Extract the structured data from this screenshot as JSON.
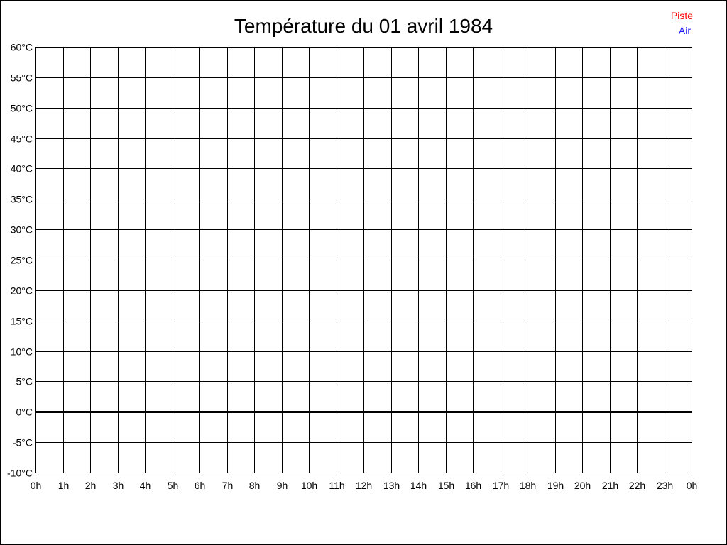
{
  "chart_data": {
    "type": "line",
    "title": "Température du 01 avril 1984",
    "xlabel": "",
    "ylabel": "",
    "x_ticks": [
      "0h",
      "1h",
      "2h",
      "3h",
      "4h",
      "5h",
      "6h",
      "7h",
      "8h",
      "9h",
      "10h",
      "11h",
      "12h",
      "13h",
      "14h",
      "15h",
      "16h",
      "17h",
      "18h",
      "19h",
      "20h",
      "21h",
      "22h",
      "23h",
      "0h"
    ],
    "y_ticks": [
      "60°C",
      "55°C",
      "50°C",
      "45°C",
      "40°C",
      "35°C",
      "30°C",
      "25°C",
      "20°C",
      "15°C",
      "10°C",
      "5°C",
      "0°C",
      "-5°C",
      "-10°C"
    ],
    "ylim": [
      -10,
      60
    ],
    "xlim": [
      0,
      24
    ],
    "grid": true,
    "legend_placement": "top-right",
    "series": [
      {
        "name": "Piste",
        "color": "#ff0000",
        "values": []
      },
      {
        "name": "Air",
        "color": "#2020ff",
        "values": []
      }
    ]
  }
}
